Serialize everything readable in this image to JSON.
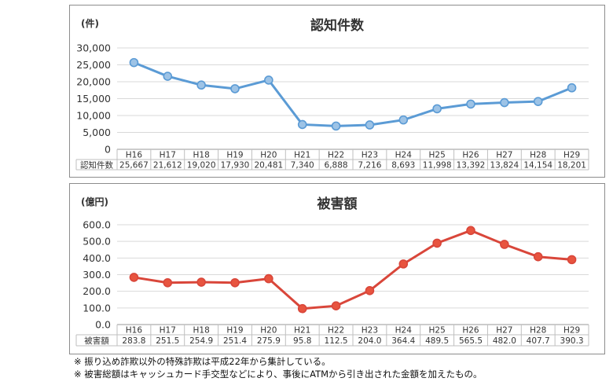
{
  "chart_data": [
    {
      "type": "line",
      "title": "認知件数",
      "unit_label": "(件)",
      "categories": [
        "H16",
        "H17",
        "H18",
        "H19",
        "H20",
        "H21",
        "H22",
        "H23",
        "H24",
        "H25",
        "H26",
        "H27",
        "H28",
        "H29"
      ],
      "series": [
        {
          "name": "認知件数",
          "values": [
            25667,
            21612,
            19020,
            17930,
            20481,
            7340,
            6888,
            7216,
            8693,
            11998,
            13392,
            13824,
            14154,
            18201
          ],
          "value_labels": [
            "25,667",
            "21,612",
            "19,020",
            "17,930",
            "20,481",
            "7,340",
            "6,888",
            "7,216",
            "8,693",
            "11,998",
            "13,392",
            "13,824",
            "14,154",
            "18,201"
          ]
        }
      ],
      "y_ticks": [
        "0",
        "5,000",
        "10,000",
        "15,000",
        "20,000",
        "25,000",
        "30,000"
      ],
      "ylim": [
        0,
        30000
      ],
      "grid": true,
      "data_table": true,
      "line_color": "#5b9bd5",
      "marker_color": "#9dc3e6"
    },
    {
      "type": "line",
      "title": "被害額",
      "unit_label": "(億円)",
      "categories": [
        "H16",
        "H17",
        "H18",
        "H19",
        "H20",
        "H21",
        "H22",
        "H23",
        "H24",
        "H25",
        "H26",
        "H27",
        "H28",
        "H29"
      ],
      "series": [
        {
          "name": "被害額",
          "values": [
            283.8,
            251.5,
            254.9,
            251.4,
            275.9,
            95.8,
            112.5,
            204.0,
            364.4,
            489.5,
            565.5,
            482.0,
            407.7,
            390.3
          ],
          "value_labels": [
            "283.8",
            "251.5",
            "254.9",
            "251.4",
            "275.9",
            "95.8",
            "112.5",
            "204.0",
            "364.4",
            "489.5",
            "565.5",
            "482.0",
            "407.7",
            "390.3"
          ]
        }
      ],
      "y_ticks": [
        "0.0",
        "100.0",
        "200.0",
        "300.0",
        "400.0",
        "500.0",
        "600.0"
      ],
      "ylim": [
        0,
        600
      ],
      "grid": true,
      "data_table": true,
      "line_color": "#d9463a",
      "marker_color": "#e8543f"
    }
  ],
  "notes": [
    "※ 振り込め詐欺以外の特殊詐欺は平成22年から集計している。",
    "※ 被害総額はキャッシュカード手交型などにより、事後にATMから引き出された金額を加えたもの。"
  ]
}
